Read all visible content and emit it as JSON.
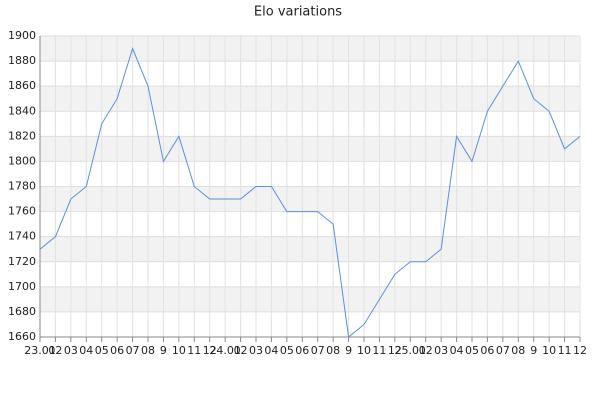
{
  "chart_data": {
    "type": "line",
    "title": "Elo variations",
    "categories": [
      "23.01",
      "02",
      "03",
      "04",
      "05",
      "06",
      "07",
      "08",
      "9",
      "10",
      "11",
      "12",
      "24.01",
      "02",
      "03",
      "04",
      "05",
      "06",
      "07",
      "08",
      "9",
      "10",
      "11",
      "12",
      "25.01",
      "02",
      "03",
      "04",
      "05",
      "06",
      "07",
      "08",
      "9",
      "10",
      "11",
      "12"
    ],
    "values": [
      1730,
      1740,
      1770,
      1780,
      1830,
      1850,
      1890,
      1860,
      1800,
      1820,
      1780,
      1770,
      1770,
      1770,
      1780,
      1780,
      1760,
      1760,
      1760,
      1750,
      1660,
      1670,
      1690,
      1710,
      1720,
      1720,
      1730,
      1820,
      1800,
      1840,
      1860,
      1880,
      1850,
      1840,
      1810,
      1820
    ],
    "color": "#5b8fe0",
    "ylim": [
      1660,
      1900
    ],
    "yticks": [
      1660,
      1680,
      1700,
      1720,
      1740,
      1760,
      1780,
      1800,
      1820,
      1840,
      1860,
      1880,
      1900
    ],
    "grid": true
  }
}
